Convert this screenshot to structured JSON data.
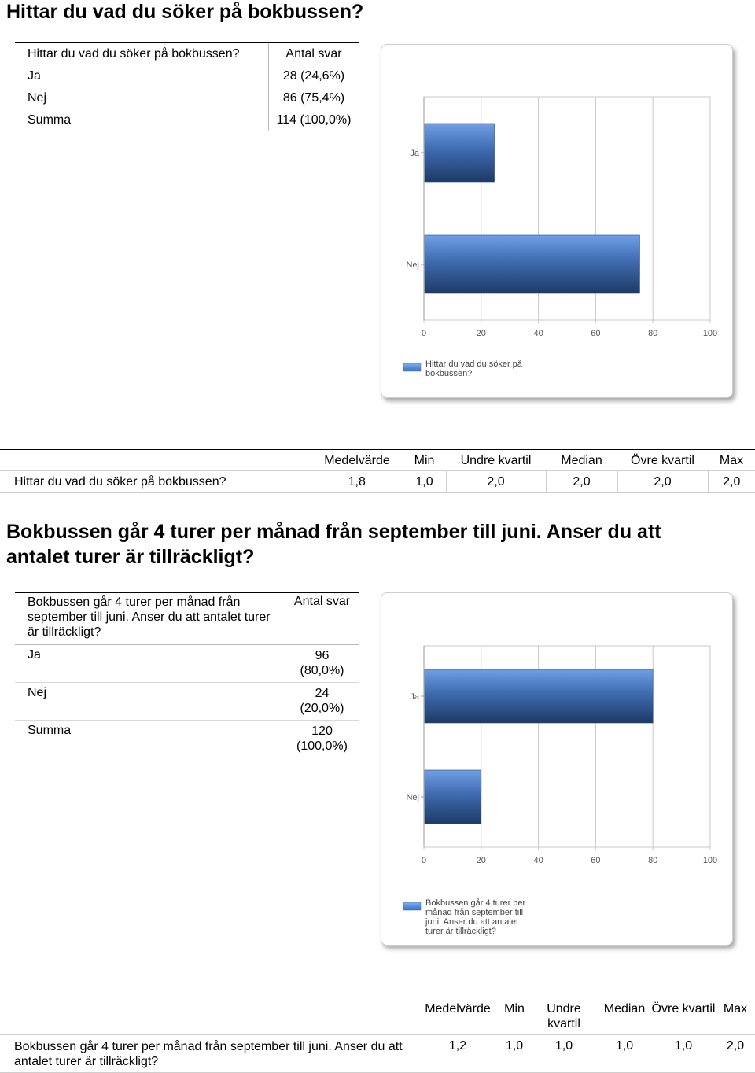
{
  "section1": {
    "heading": "Hittar du vad du söker på bokbussen?",
    "table": {
      "header": [
        "Hittar du vad du söker på bokbussen?",
        "Antal svar"
      ],
      "rows": [
        {
          "label": "Ja",
          "value": "28 (24,6%)"
        },
        {
          "label": "Nej",
          "value": "86 (75,4%)"
        },
        {
          "label": "Summa",
          "value": "114 (100,0%)"
        }
      ]
    },
    "stats": {
      "headers": [
        "Medelvärde",
        "Min",
        "Undre kvartil",
        "Median",
        "Övre kvartil",
        "Max"
      ],
      "row_label": "Hittar du vad du söker på bokbussen?",
      "values": [
        "1,8",
        "1,0",
        "2,0",
        "2,0",
        "2,0",
        "2,0"
      ]
    }
  },
  "section2": {
    "heading": "Bokbussen går 4 turer per månad från september till juni. Anser du att antalet turer är tillräckligt?",
    "table": {
      "header": [
        "Bokbussen går 4 turer per månad från september till juni. Anser du att antalet turer är tillräckligt?",
        "Antal svar"
      ],
      "rows": [
        {
          "label": "Ja",
          "value": "96 (80,0%)"
        },
        {
          "label": "Nej",
          "value": "24 (20,0%)"
        },
        {
          "label": "Summa",
          "value": "120 (100,0%)"
        }
      ]
    },
    "stats": {
      "headers": [
        "Medelvärde",
        "Min",
        "Undre kvartil",
        "Median",
        "Övre kvartil",
        "Max"
      ],
      "row_label": "Bokbussen går 4 turer per månad från september till juni. Anser du att antalet turer är tillräckligt?",
      "values": [
        "1,2",
        "1,0",
        "1,0",
        "1,0",
        "1,0",
        "2,0"
      ]
    }
  },
  "colors": {
    "bar_light": "#6f9fe6",
    "bar_dark": "#1e3a66",
    "grid": "#c8c8c8"
  },
  "chart_data": [
    {
      "type": "bar",
      "orientation": "horizontal",
      "categories": [
        "Ja",
        "Nej"
      ],
      "values": [
        24.6,
        75.4
      ],
      "xlim": [
        0,
        100
      ],
      "xticks": [
        "0",
        "20",
        "40",
        "60",
        "80",
        "100"
      ],
      "legend": "Hittar du vad du söker på bokbussen?",
      "legend_lines": [
        "Hittar du vad du söker på",
        "bokbussen?"
      ],
      "legend_position": "bottom-left",
      "grid": true
    },
    {
      "type": "bar",
      "orientation": "horizontal",
      "categories": [
        "Ja",
        "Nej"
      ],
      "values": [
        80.0,
        20.0
      ],
      "xlim": [
        0,
        100
      ],
      "xticks": [
        "0",
        "20",
        "40",
        "60",
        "80",
        "100"
      ],
      "legend": "Bokbussen går 4 turer per månad från september till juni. Anser du att antalet turer är tillräckligt?",
      "legend_lines": [
        "Bokbussen går 4 turer per",
        "månad från september till",
        "juni. Anser du att antalet",
        "turer är tillräckligt?"
      ],
      "legend_position": "bottom-left",
      "grid": true
    }
  ]
}
